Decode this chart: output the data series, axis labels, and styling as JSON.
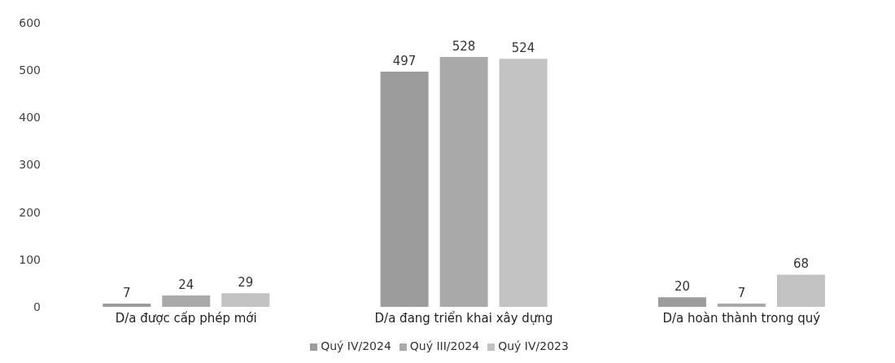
{
  "chart_data": {
    "type": "bar",
    "categories": [
      "D/a được cấp phép mới",
      "D/a đang triển khai xây dựng",
      "D/a hoàn thành trong quý"
    ],
    "series": [
      {
        "name": "Quý IV/2024",
        "color": "#9c9c9c",
        "values": [
          7,
          497,
          20
        ]
      },
      {
        "name": "Quý III/2024",
        "color": "#a9a9a9",
        "values": [
          24,
          528,
          7
        ]
      },
      {
        "name": "Quý IV/2023",
        "color": "#c2c2c2",
        "values": [
          29,
          524,
          68
        ]
      }
    ],
    "ylim": [
      0,
      600
    ],
    "yticks": [
      0,
      100,
      200,
      300,
      400,
      500,
      600
    ],
    "grid": false,
    "legend": "bottom",
    "data_labels": true
  }
}
